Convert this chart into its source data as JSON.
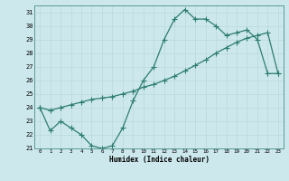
{
  "curve1_x": [
    0,
    1,
    2,
    3,
    4,
    5,
    6,
    7,
    8,
    9,
    10,
    11,
    12,
    13,
    14,
    15,
    16,
    17,
    18,
    19,
    20,
    21,
    22,
    23
  ],
  "curve1_y": [
    24.0,
    22.3,
    23.0,
    22.5,
    22.0,
    21.2,
    21.0,
    21.2,
    22.5,
    24.5,
    26.0,
    27.0,
    29.0,
    30.5,
    31.2,
    30.5,
    30.5,
    30.0,
    29.3,
    29.5,
    29.7,
    29.0,
    26.5,
    26.5
  ],
  "curve2_x": [
    0,
    1,
    2,
    3,
    4,
    5,
    6,
    7,
    8,
    9,
    10,
    11,
    12,
    13,
    14,
    15,
    16,
    17,
    18,
    19,
    20,
    21,
    22,
    23
  ],
  "curve2_y": [
    24.0,
    23.8,
    24.0,
    24.2,
    24.4,
    24.6,
    24.7,
    24.8,
    25.0,
    25.2,
    25.5,
    25.7,
    26.0,
    26.3,
    26.7,
    27.1,
    27.5,
    28.0,
    28.4,
    28.8,
    29.1,
    29.3,
    29.5,
    26.5
  ],
  "color": "#2d7d6e",
  "bg_color": "#cce8ed",
  "grid_color": "#b0d8de",
  "grid_minor_color": "#c5e3e8",
  "xlabel": "Humidex (Indice chaleur)",
  "ylabel_ticks": [
    21,
    22,
    23,
    24,
    25,
    26,
    27,
    28,
    29,
    30,
    31
  ],
  "xlim": [
    -0.5,
    23.5
  ],
  "ylim": [
    21,
    31.5
  ],
  "marker": "+",
  "markersize": 4,
  "linewidth": 0.9
}
